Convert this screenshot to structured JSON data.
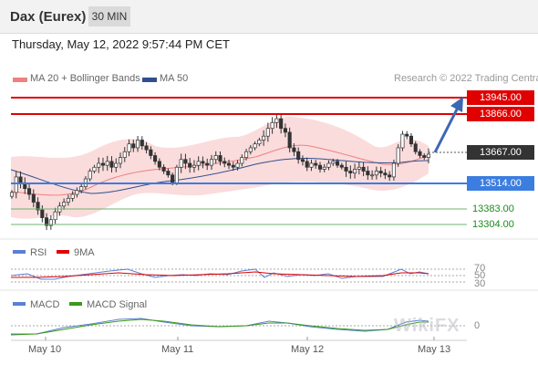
{
  "header": {
    "symbol": "Dax (Eurex)",
    "timeframe": "30 MIN"
  },
  "datetime": "Thursday, May 12, 2022 9:57:44 PM CET",
  "legend": {
    "ma20_label": "MA 20 + Bollinger Bands",
    "ma50_label": "MA 50",
    "copyright": "Research © 2022 Trading Central",
    "ma20_color": "#f08080",
    "ma50_color": "#2f4f8f"
  },
  "levels": {
    "r2": "13945.00",
    "r1": "13866.00",
    "last": "13667.00",
    "pivot": "13514.00",
    "s1": "13383.00",
    "s2": "13304.00",
    "resistance_color": "#e00000",
    "pivot_color": "#3b7de0",
    "support_color": "#1d8a1d",
    "last_color": "#333333"
  },
  "rsi": {
    "label": "RSI",
    "ma_label": "9MA",
    "levels": [
      "70",
      "50",
      "30"
    ],
    "rsi_color": "#5b7fd6",
    "ma_color": "#e00000"
  },
  "macd": {
    "label": "MACD",
    "signal_label": "MACD Signal",
    "zero": "0",
    "macd_color": "#5b7fd6",
    "signal_color": "#3a9a1a"
  },
  "xaxis": [
    "May 10",
    "May 11",
    "May 12",
    "May 13"
  ],
  "watermark": "WikiFX",
  "chart_data": {
    "type": "candlestick",
    "timeframe": "30 MIN",
    "ylim": [
      13230,
      14010
    ],
    "levels": [
      13945,
      13866,
      13667,
      13514,
      13383,
      13304
    ],
    "closes": [
      13470,
      13550,
      13520,
      13490,
      13460,
      13420,
      13380,
      13340,
      13300,
      13330,
      13370,
      13400,
      13420,
      13440,
      13460,
      13480,
      13500,
      13540,
      13580,
      13600,
      13620,
      13610,
      13630,
      13600,
      13620,
      13650,
      13680,
      13720,
      13700,
      13740,
      13710,
      13690,
      13660,
      13630,
      13600,
      13580,
      13560,
      13520,
      13600,
      13640,
      13620,
      13600,
      13610,
      13630,
      13620,
      13610,
      13640,
      13660,
      13630,
      13620,
      13610,
      13600,
      13620,
      13650,
      13680,
      13700,
      13720,
      13740,
      13760,
      13800,
      13830,
      13850,
      13800,
      13780,
      13700,
      13680,
      13640,
      13630,
      13600,
      13620,
      13610,
      13590,
      13600,
      13620,
      13630,
      13610,
      13600,
      13580,
      13570,
      13590,
      13600,
      13580,
      13560,
      13560,
      13580,
      13570,
      13560,
      13550,
      13620,
      13700,
      13770,
      13760,
      13720,
      13680,
      13660,
      13650,
      13667
    ]
  }
}
